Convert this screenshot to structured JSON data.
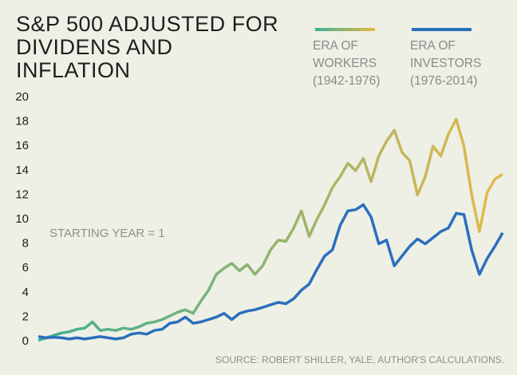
{
  "chart_data": {
    "type": "line",
    "title": "S&P 500 ADJUSTED FOR DIVIDENS AND INFLATION",
    "annotation": "STARTING YEAR = 1",
    "source": "SOURCE: ROBERT SHILLER, YALE, AUTHOR'S CALCULATIONS.",
    "x": [
      0,
      1,
      2,
      3,
      4,
      5,
      6,
      7,
      8,
      9,
      10,
      11,
      12,
      13,
      14,
      15,
      16,
      17,
      18,
      19,
      20,
      21,
      22,
      23,
      24,
      25,
      26,
      27,
      28,
      29,
      30,
      31,
      32,
      33,
      34,
      35,
      36,
      37,
      38,
      39,
      40,
      41,
      42,
      43,
      44,
      45,
      46,
      47,
      48,
      49,
      50,
      51,
      52,
      53,
      54,
      55,
      56,
      57,
      58,
      59,
      60
    ],
    "xlim": [
      0,
      60
    ],
    "ylim": [
      0,
      20
    ],
    "yticks": [
      0,
      2,
      4,
      6,
      8,
      10,
      12,
      14,
      16,
      18,
      20
    ],
    "grid": false,
    "series": [
      {
        "name": "ERA OF WORKERS",
        "period": "(1942-1976)",
        "colors": [
          "#3fae94",
          "#e6b94c"
        ],
        "values": [
          0.1,
          0.3,
          0.5,
          0.7,
          0.8,
          1.0,
          1.1,
          1.6,
          0.9,
          1.0,
          0.9,
          1.1,
          1.0,
          1.2,
          1.5,
          1.6,
          1.8,
          2.1,
          2.4,
          2.6,
          2.3,
          3.3,
          4.2,
          5.5,
          6.0,
          6.4,
          5.8,
          6.3,
          5.5,
          6.2,
          7.5,
          8.3,
          8.2,
          9.3,
          10.7,
          8.6,
          10.0,
          11.2,
          12.6,
          13.5,
          14.6,
          14.0,
          15.0,
          13.1,
          15.2,
          16.4,
          17.3,
          15.5,
          14.8,
          12.0,
          13.5,
          16.0,
          15.2,
          17.0,
          18.2,
          16.0,
          12.0,
          9.0,
          12.2,
          13.3,
          13.7
        ]
      },
      {
        "name": "ERA OF INVESTORS",
        "period": "(1976-2014)",
        "colors": [
          "#2a6fbd",
          "#2a6fbd"
        ],
        "values": [
          0.4,
          0.3,
          0.35,
          0.3,
          0.2,
          0.3,
          0.2,
          0.3,
          0.4,
          0.3,
          0.2,
          0.3,
          0.6,
          0.7,
          0.6,
          0.9,
          1.0,
          1.5,
          1.6,
          2.0,
          1.5,
          1.6,
          1.8,
          2.0,
          2.3,
          1.8,
          2.3,
          2.5,
          2.6,
          2.8,
          3.0,
          3.2,
          3.1,
          3.5,
          4.2,
          4.7,
          5.9,
          7.0,
          7.5,
          9.5,
          10.7,
          10.8,
          11.2,
          10.2,
          8.0,
          8.3,
          6.2,
          7.0,
          7.8,
          8.4,
          8.0,
          8.5,
          9.0,
          9.3,
          10.5,
          10.4,
          7.5,
          5.5,
          6.8,
          7.8,
          8.9
        ]
      }
    ]
  }
}
